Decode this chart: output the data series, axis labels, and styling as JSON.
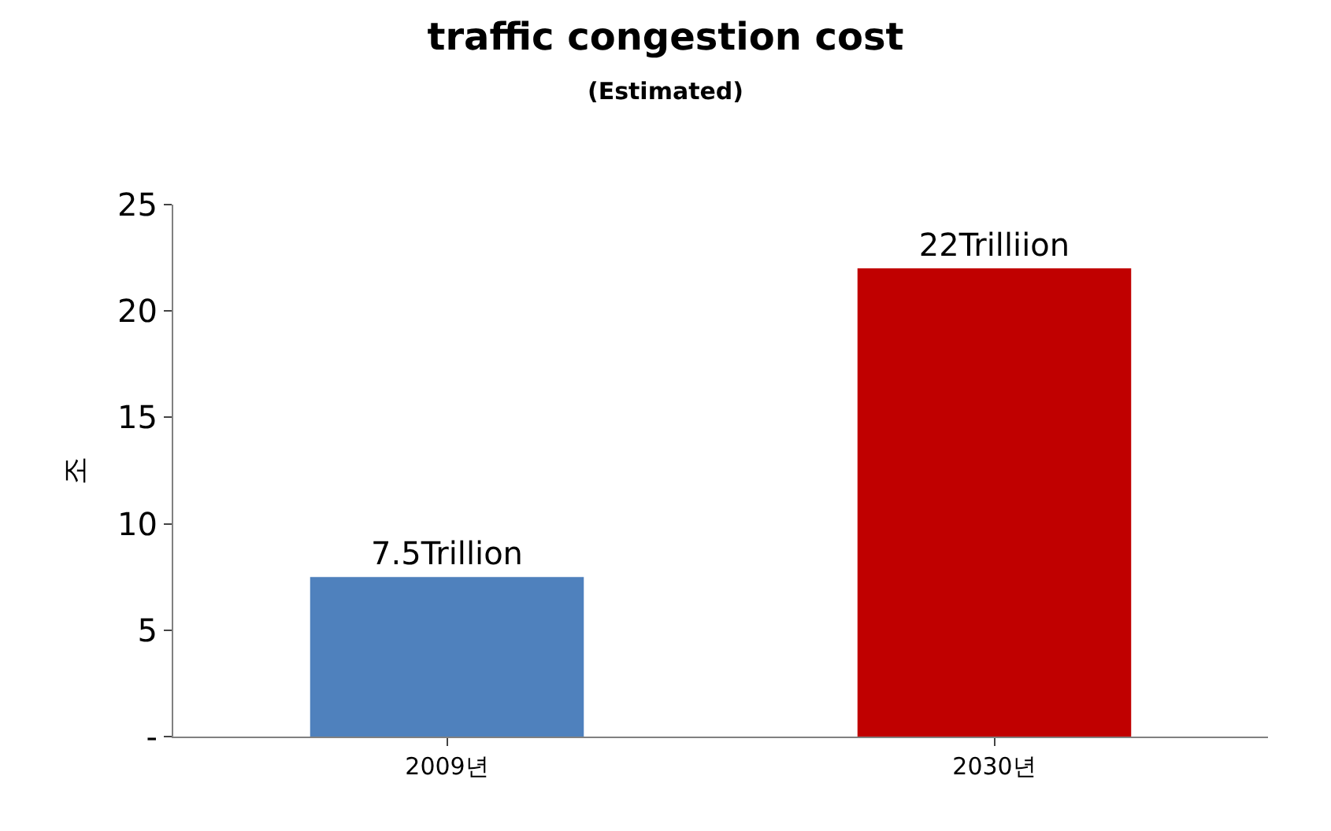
{
  "chart_data": {
    "type": "bar",
    "title": "traffic congestion cost",
    "subtitle": "(Estimated)",
    "ylabel": "조",
    "categories": [
      "2009년",
      "2030년"
    ],
    "values": [
      7.5,
      22
    ],
    "colors": [
      "#4f81bd",
      "#c00000"
    ],
    "value_labels": [
      "7.5Trillion",
      "22Trilliion"
    ],
    "ylim": [
      0,
      25
    ],
    "yticks": [
      {
        "value": 0,
        "label": "-"
      },
      5,
      10,
      15,
      20,
      25
    ],
    "legend": false
  }
}
